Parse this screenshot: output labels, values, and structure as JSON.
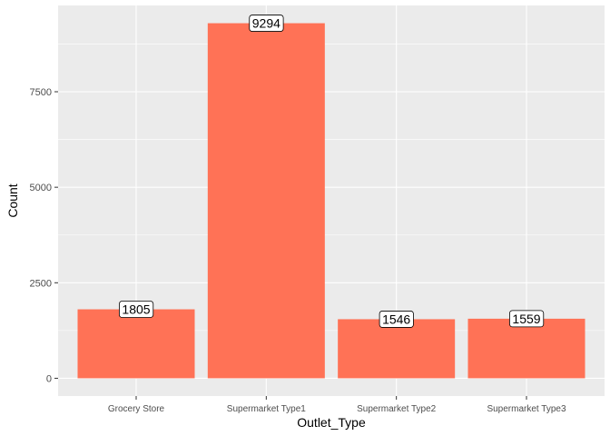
{
  "chart_data": {
    "type": "bar",
    "categories": [
      "Grocery Store",
      "Supermarket Type1",
      "Supermarket Type2",
      "Supermarket Type3"
    ],
    "values": [
      1805,
      9294,
      1546,
      1559
    ],
    "data_labels": [
      "1805",
      "9294",
      "1546",
      "1559"
    ],
    "xlabel": "Outlet_Type",
    "ylabel": "Count",
    "ylim": [
      -465,
      9759
    ],
    "yticks": [
      0,
      2500,
      5000,
      7500
    ],
    "ytick_labels": [
      "0",
      "2500",
      "5000",
      "7500"
    ],
    "grid": true,
    "legend": "none",
    "bar_color": "#FF7256",
    "panel_background": "#EBEBEB"
  }
}
